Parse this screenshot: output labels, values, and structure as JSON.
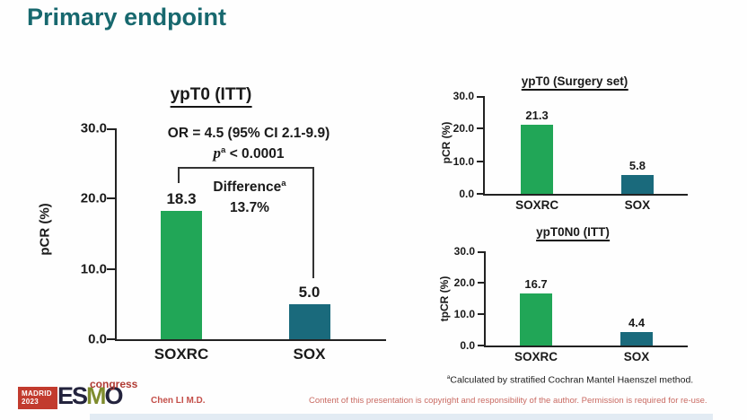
{
  "slide": {
    "title": "Primary endpoint",
    "footnote": {
      "sup": "a",
      "text": "Calculated by stratified Cochran Mantel Haenszel method."
    },
    "author": "Chen LI M.D.",
    "disclaimer": "Content of this presentation is copyright and responsibility of the author. Permission is required for re-use.",
    "logo": {
      "location": "MADRID",
      "year": "2023",
      "esmo_letters": [
        "E",
        "S",
        "M",
        "O"
      ],
      "congress": "congress"
    }
  },
  "annotations": {
    "or_text": "OR = 4.5 (95% CI 2.1-9.9)",
    "p_base": "p",
    "p_sup": "a",
    "p_rest": " < 0.0001",
    "difference_base": "Difference",
    "difference_sup": "a",
    "difference_value": "13.7%"
  },
  "colors": {
    "title_teal": "#17686e",
    "bar_green": "#21a657",
    "bar_teal": "#1a6a7c",
    "red_text": "#c4504a"
  },
  "chart_data": [
    {
      "id": "main",
      "type": "bar",
      "title": "ypT0 (ITT)",
      "ylabel": "pCR (%)",
      "ylim": [
        0,
        30
      ],
      "ytick_values": [
        0,
        10,
        20,
        30
      ],
      "ytick_labels": [
        "0.0",
        "10.0",
        "20.0",
        "30.0"
      ],
      "categories": [
        "SOXRC",
        "SOX"
      ],
      "values": [
        18.3,
        5.0
      ],
      "value_labels": [
        "18.3",
        "5.0"
      ],
      "bar_colors": [
        "#21a657",
        "#1a6a7c"
      ],
      "legend": "none",
      "grid": false
    },
    {
      "id": "surgery",
      "type": "bar",
      "title": "ypT0 (Surgery set)",
      "ylabel": "pCR (%)",
      "ylim": [
        0,
        30
      ],
      "ytick_values": [
        0,
        10,
        20,
        30
      ],
      "ytick_labels": [
        "0.0",
        "10.0",
        "20.0",
        "30.0"
      ],
      "categories": [
        "SOXRC",
        "SOX"
      ],
      "values": [
        21.3,
        5.8
      ],
      "value_labels": [
        "21.3",
        "5.8"
      ],
      "bar_colors": [
        "#21a657",
        "#1a6a7c"
      ],
      "legend": "none",
      "grid": false
    },
    {
      "id": "ypt0n0",
      "type": "bar",
      "title": "ypT0N0 (ITT)",
      "ylabel": "tpCR (%)",
      "ylim": [
        0,
        30
      ],
      "ytick_values": [
        0,
        10,
        20,
        30
      ],
      "ytick_labels": [
        "0.0",
        "10.0",
        "20.0",
        "30.0"
      ],
      "categories": [
        "SOXRC",
        "SOX"
      ],
      "values": [
        16.7,
        4.4
      ],
      "value_labels": [
        "16.7",
        "4.4"
      ],
      "bar_colors": [
        "#21a657",
        "#1a6a7c"
      ],
      "legend": "none",
      "grid": false
    }
  ]
}
